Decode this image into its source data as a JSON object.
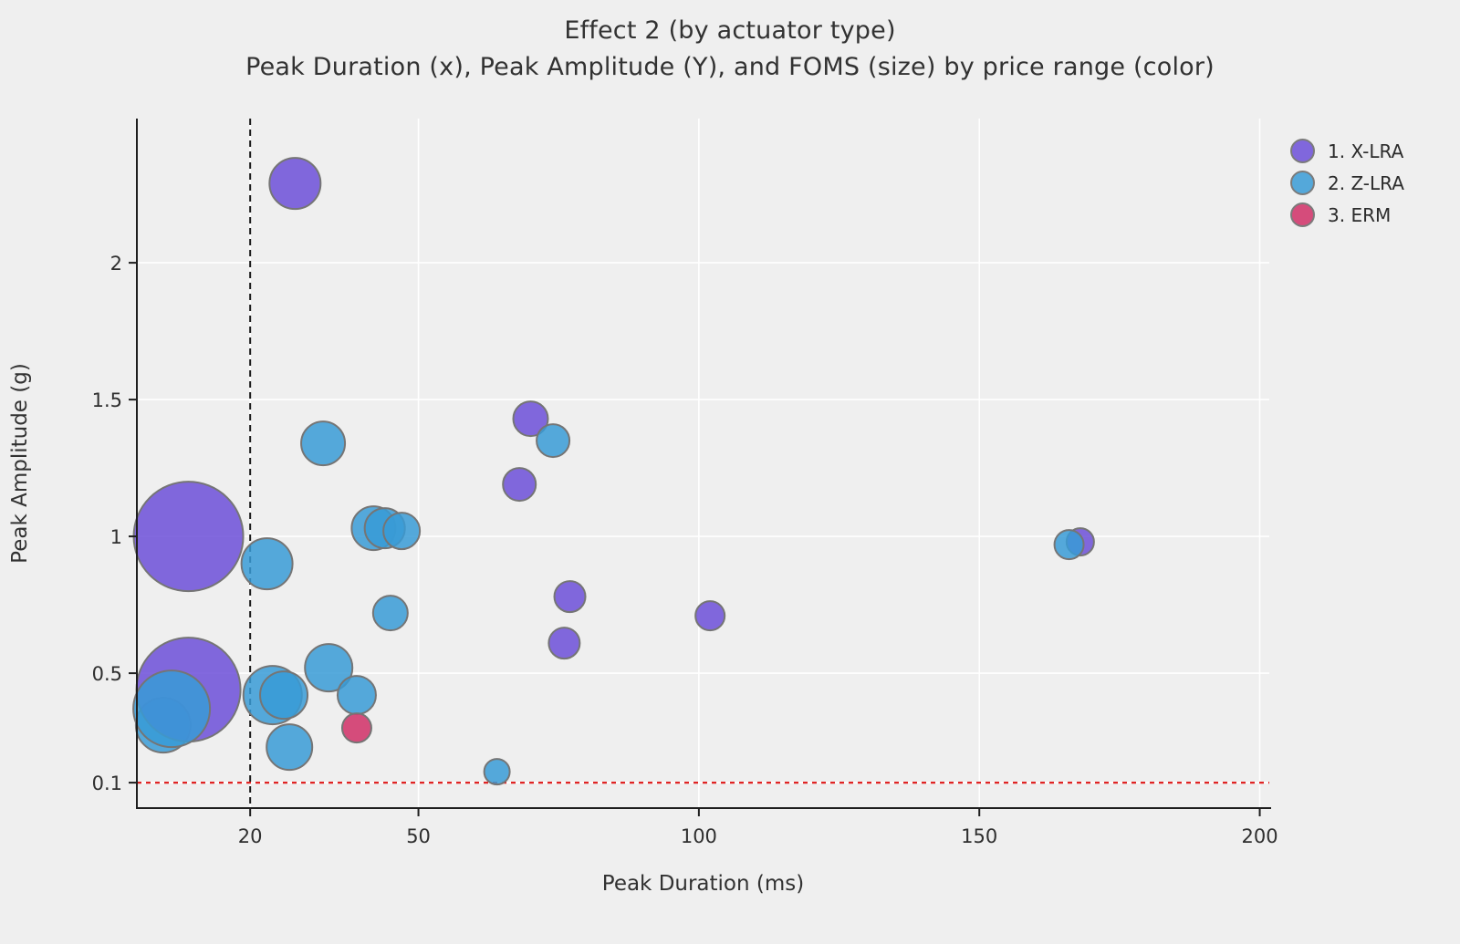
{
  "chart_data": {
    "type": "scatter",
    "subtype": "bubble",
    "title": "Effect 2 (by actuator type)",
    "subtitle": "Peak Duration (x), Peak Amplitude (Y), and FOMS (size) by price range (color)",
    "xlabel": "Peak Duration (ms)",
    "ylabel": "Peak Amplitude (g)",
    "xlim": [
      -0.2,
      201.7
    ],
    "ylim": [
      0.007,
      2.527
    ],
    "x_ticks": [
      20,
      50,
      100,
      150,
      200
    ],
    "x_tick_labels": [
      "20",
      "50",
      "100",
      "150",
      "200"
    ],
    "y_ticks": [
      0.1,
      0.5,
      1,
      1.5,
      2
    ],
    "y_tick_labels": [
      "0.1",
      "0.5",
      "1",
      "1.5",
      "2"
    ],
    "grid": true,
    "gridline_color": "#ffffff",
    "background_color": "#efefef",
    "marker_stroke_color": "#757575",
    "size_encoding": "FOMS",
    "reference_lines": [
      {
        "axis": "x",
        "value": 20,
        "style": "dashed",
        "color": "#1a1a1a"
      },
      {
        "axis": "y",
        "value": 0.1,
        "style": "dashed",
        "color": "#e02424"
      }
    ],
    "legend": {
      "position": "top-right",
      "items": [
        {
          "label": "1. X-LRA",
          "color": "#6c4fd8",
          "opacity": 0.85
        },
        {
          "label": "2. Z-LRA",
          "color": "#389bd6",
          "opacity": 0.85
        },
        {
          "label": "3. ERM",
          "color": "#d23a6e",
          "opacity": 0.9
        }
      ]
    },
    "series": [
      {
        "name": "1. X-LRA",
        "color": "#6c4fd8",
        "opacity": 0.85,
        "points": [
          {
            "x": 28,
            "y": 2.29,
            "r": 28
          },
          {
            "x": 9,
            "y": 1.0,
            "r": 60
          },
          {
            "x": 9,
            "y": 0.44,
            "r": 57
          },
          {
            "x": 70,
            "y": 1.43,
            "r": 19
          },
          {
            "x": 68,
            "y": 1.19,
            "r": 18
          },
          {
            "x": 77,
            "y": 0.78,
            "r": 17
          },
          {
            "x": 76,
            "y": 0.61,
            "r": 17
          },
          {
            "x": 102,
            "y": 0.71,
            "r": 16
          },
          {
            "x": 168,
            "y": 0.98,
            "r": 15
          }
        ]
      },
      {
        "name": "2. Z-LRA",
        "color": "#389bd6",
        "opacity": 0.85,
        "points": [
          {
            "x": 4.5,
            "y": 0.31,
            "r": 30
          },
          {
            "x": 6,
            "y": 0.37,
            "r": 42
          },
          {
            "x": 24,
            "y": 0.42,
            "r": 32
          },
          {
            "x": 26,
            "y": 0.42,
            "r": 26
          },
          {
            "x": 23,
            "y": 0.9,
            "r": 28
          },
          {
            "x": 34,
            "y": 0.52,
            "r": 26
          },
          {
            "x": 27,
            "y": 0.23,
            "r": 25
          },
          {
            "x": 39,
            "y": 0.42,
            "r": 21
          },
          {
            "x": 33,
            "y": 1.34,
            "r": 24
          },
          {
            "x": 42,
            "y": 1.03,
            "r": 24
          },
          {
            "x": 44,
            "y": 1.03,
            "r": 22
          },
          {
            "x": 47,
            "y": 1.02,
            "r": 20
          },
          {
            "x": 45,
            "y": 0.72,
            "r": 19
          },
          {
            "x": 74,
            "y": 1.35,
            "r": 18
          },
          {
            "x": 166,
            "y": 0.97,
            "r": 16
          },
          {
            "x": 64,
            "y": 0.14,
            "r": 14
          }
        ]
      },
      {
        "name": "3. ERM",
        "color": "#d23a6e",
        "opacity": 0.9,
        "points": [
          {
            "x": 39,
            "y": 0.3,
            "r": 16
          }
        ]
      }
    ],
    "draw_order": [
      [
        1,
        0
      ],
      [
        0,
        1
      ],
      [
        0,
        2
      ],
      [
        1,
        1
      ],
      [
        1,
        2
      ],
      [
        1,
        3
      ],
      [
        1,
        4
      ],
      [
        1,
        5
      ],
      [
        1,
        6
      ],
      [
        1,
        7
      ],
      [
        2,
        0
      ],
      [
        1,
        8
      ],
      [
        1,
        9
      ],
      [
        1,
        10
      ],
      [
        1,
        11
      ],
      [
        1,
        12
      ],
      [
        0,
        4
      ],
      [
        0,
        3
      ],
      [
        1,
        13
      ],
      [
        0,
        5
      ],
      [
        0,
        6
      ],
      [
        0,
        7
      ],
      [
        0,
        0
      ],
      [
        0,
        8
      ],
      [
        1,
        14
      ],
      [
        1,
        15
      ]
    ]
  }
}
